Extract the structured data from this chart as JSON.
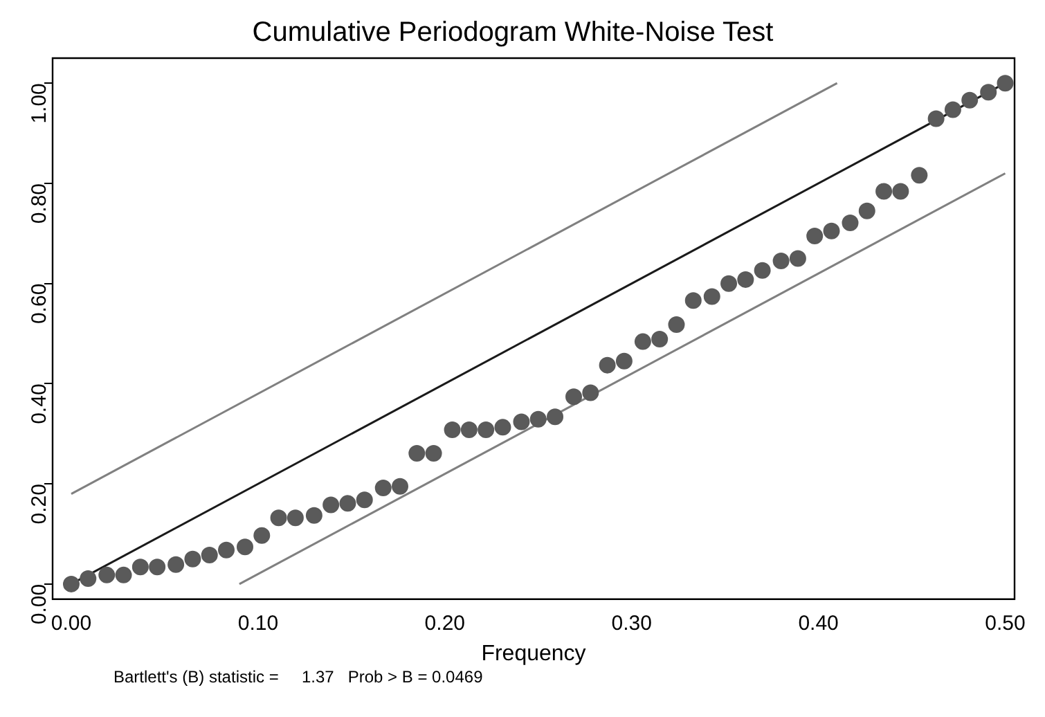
{
  "chart_data": {
    "type": "scatter",
    "title": "Cumulative Periodogram White-Noise Test",
    "xlabel": "Frequency",
    "xlim": [
      -0.01,
      0.505
    ],
    "ylim": [
      -0.03,
      1.05
    ],
    "xticks": [
      {
        "value": 0,
        "label": "0.00"
      },
      {
        "value": 0.1,
        "label": "0.10"
      },
      {
        "value": 0.2,
        "label": "0.20"
      },
      {
        "value": 0.3,
        "label": "0.30"
      },
      {
        "value": 0.4,
        "label": "0.40"
      },
      {
        "value": 0.5,
        "label": "0.50"
      }
    ],
    "yticks": [
      {
        "value": 0,
        "label": "0.00"
      },
      {
        "value": 0.2,
        "label": "0.20"
      },
      {
        "value": 0.4,
        "label": "0.40"
      },
      {
        "value": 0.6,
        "label": "0.60"
      },
      {
        "value": 0.8,
        "label": "0.80"
      },
      {
        "value": 1,
        "label": "1.00"
      }
    ],
    "grid": false,
    "legend": false,
    "marker": "circle",
    "series": [
      {
        "type": "line",
        "color": "#808080",
        "marker": "none",
        "x": [
          0,
          0.41
        ],
        "values": [
          0.18,
          1.0
        ]
      },
      {
        "type": "line",
        "color": "#808080",
        "marker": "none",
        "x": [
          0.09,
          0.5
        ],
        "values": [
          0,
          0.82
        ]
      },
      {
        "type": "line",
        "color": "#1a1a1a",
        "marker": "none",
        "x": [
          0,
          0.5
        ],
        "values": [
          0,
          1.0
        ]
      },
      {
        "color": "#5a5a5a",
        "x": [
          0,
          0.009,
          0.019,
          0.028,
          0.037,
          0.046,
          0.056,
          0.065,
          0.074,
          0.083,
          0.093,
          0.102,
          0.111,
          0.12,
          0.13,
          0.139,
          0.148,
          0.157,
          0.167,
          0.176,
          0.185,
          0.194,
          0.204,
          0.213,
          0.222,
          0.231,
          0.241,
          0.25,
          0.259,
          0.269,
          0.278,
          0.287,
          0.296,
          0.306,
          0.315,
          0.324,
          0.333,
          0.343,
          0.352,
          0.361,
          0.37,
          0.38,
          0.389,
          0.398,
          0.407,
          0.417,
          0.426,
          0.435,
          0.444,
          0.454,
          0.463,
          0.472,
          0.481,
          0.491,
          0.5
        ],
        "values": [
          0,
          0.011,
          0.018,
          0.018,
          0.034,
          0.034,
          0.039,
          0.05,
          0.058,
          0.068,
          0.074,
          0.097,
          0.132,
          0.132,
          0.137,
          0.158,
          0.161,
          0.168,
          0.192,
          0.195,
          0.261,
          0.261,
          0.308,
          0.308,
          0.308,
          0.313,
          0.324,
          0.329,
          0.334,
          0.374,
          0.382,
          0.437,
          0.445,
          0.484,
          0.489,
          0.518,
          0.566,
          0.574,
          0.6,
          0.608,
          0.626,
          0.645,
          0.65,
          0.695,
          0.705,
          0.721,
          0.745,
          0.784,
          0.784,
          0.816,
          0.929,
          0.947,
          0.966,
          0.982,
          1.0
        ]
      }
    ],
    "annotations": [
      "Bartlett's (B) statistic =     1.37   Prob > B = 0.0469"
    ]
  }
}
